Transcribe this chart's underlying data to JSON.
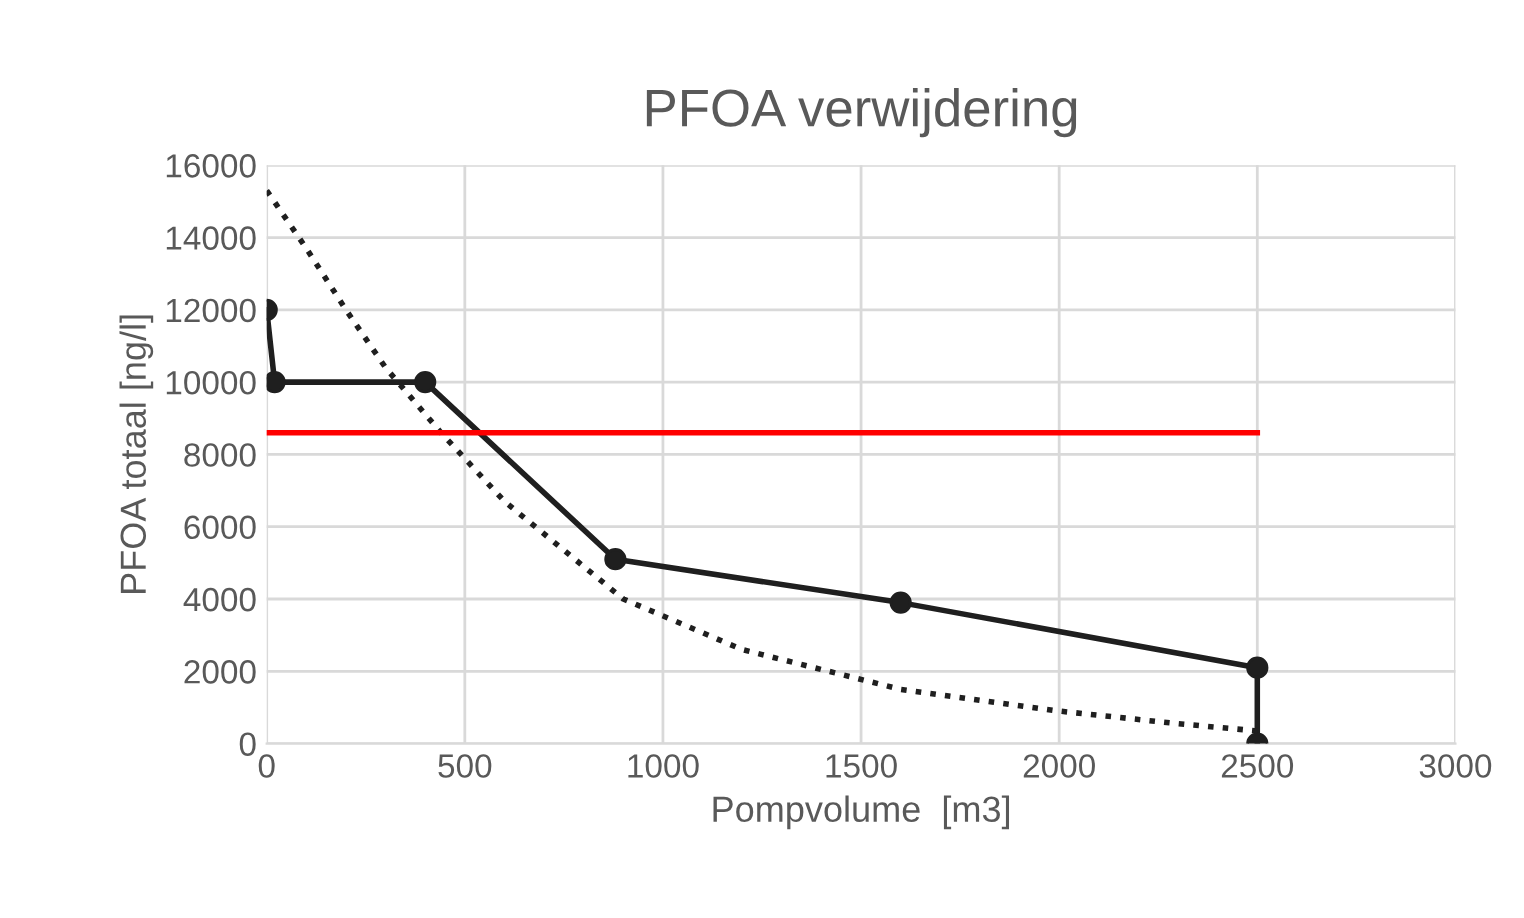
{
  "chart_data": {
    "type": "line",
    "title": "PFOA verwijdering",
    "xlabel": "Pompvolume  [m3]",
    "ylabel": "PFOA totaal [ng/l]",
    "xlim": [
      0,
      3000
    ],
    "xticks": [
      0,
      500,
      1000,
      1500,
      2000,
      2500,
      3000
    ],
    "ylim": [
      0,
      16000
    ],
    "yticks": [
      0,
      2000,
      4000,
      6000,
      8000,
      10000,
      12000,
      14000,
      16000
    ],
    "grid": true,
    "legend": false,
    "series": [
      {
        "color": "#1f1f1f",
        "marker": "circle",
        "line_style": "solid",
        "x": [
          0,
          20,
          400,
          880,
          1600,
          2500,
          2500
        ],
        "values": [
          12000,
          10000,
          10000,
          5100,
          3900,
          2100,
          0
        ]
      },
      {
        "type": "line",
        "color": "#1f1f1f",
        "marker": "none",
        "line_style": "dotted",
        "x": [
          0,
          100,
          200,
          300,
          440,
          600,
          900,
          1200,
          1600,
          2000,
          2300,
          2500
        ],
        "values": [
          15300,
          13700,
          12000,
          10400,
          8600,
          6700,
          4000,
          2600,
          1500,
          900,
          550,
          350
        ]
      },
      {
        "type": "line",
        "color": "#ff0000",
        "marker": "none",
        "line_style": "solid",
        "x": [
          0,
          2500
        ],
        "values": [
          8600,
          8600
        ]
      }
    ]
  }
}
